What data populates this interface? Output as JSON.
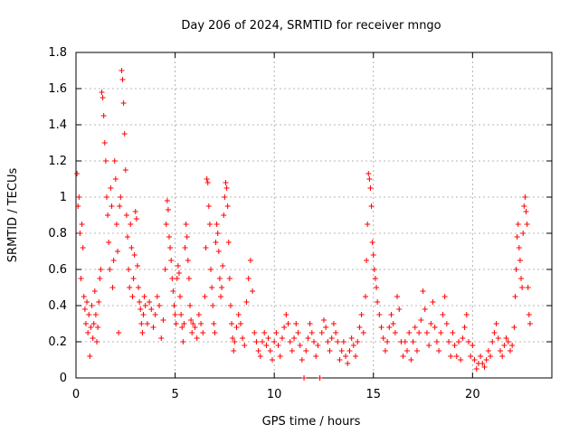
{
  "chart_data": {
    "type": "scatter",
    "title": "Day 206 of 2024, SRMTID for receiver mngo",
    "xlabel": "GPS time / hours",
    "ylabel": "SRMTID / TECUs",
    "xlim": [
      0,
      24
    ],
    "ylim": [
      0,
      1.8
    ],
    "xticks": [
      0,
      5,
      10,
      15,
      20
    ],
    "yticks": [
      0,
      0.2,
      0.4,
      0.6,
      0.8,
      1,
      1.2,
      1.4,
      1.6,
      1.8
    ],
    "grid": true,
    "marker": "+",
    "color": "#ff0000",
    "series": [
      {
        "name": "SRMTID",
        "points": [
          [
            0.05,
            1.13
          ],
          [
            0.1,
            0.95
          ],
          [
            0.15,
            1.0
          ],
          [
            0.2,
            0.8
          ],
          [
            0.25,
            0.55
          ],
          [
            0.3,
            0.85
          ],
          [
            0.35,
            0.72
          ],
          [
            0.4,
            0.45
          ],
          [
            0.45,
            0.38
          ],
          [
            0.5,
            0.3
          ],
          [
            0.55,
            0.42
          ],
          [
            0.6,
            0.25
          ],
          [
            0.65,
            0.35
          ],
          [
            0.7,
            0.12
          ],
          [
            0.75,
            0.28
          ],
          [
            0.8,
            0.4
          ],
          [
            0.85,
            0.22
          ],
          [
            0.9,
            0.3
          ],
          [
            0.95,
            0.48
          ],
          [
            1.0,
            0.35
          ],
          [
            1.05,
            0.2
          ],
          [
            1.1,
            0.28
          ],
          [
            1.15,
            0.42
          ],
          [
            1.2,
            0.55
          ],
          [
            1.25,
            0.6
          ],
          [
            1.3,
            1.58
          ],
          [
            1.35,
            1.55
          ],
          [
            1.4,
            1.45
          ],
          [
            1.45,
            1.3
          ],
          [
            1.5,
            1.2
          ],
          [
            1.55,
            1.0
          ],
          [
            1.6,
            0.9
          ],
          [
            1.65,
            0.75
          ],
          [
            1.7,
            0.6
          ],
          [
            1.75,
            1.05
          ],
          [
            1.8,
            0.95
          ],
          [
            1.85,
            0.5
          ],
          [
            1.9,
            0.65
          ],
          [
            1.95,
            1.2
          ],
          [
            2.0,
            1.1
          ],
          [
            2.05,
            0.85
          ],
          [
            2.1,
            0.7
          ],
          [
            2.15,
            0.25
          ],
          [
            2.2,
            0.95
          ],
          [
            2.25,
            1.0
          ],
          [
            2.3,
            1.7
          ],
          [
            2.35,
            1.65
          ],
          [
            2.4,
            1.52
          ],
          [
            2.45,
            1.35
          ],
          [
            2.5,
            1.15
          ],
          [
            2.55,
            0.9
          ],
          [
            2.6,
            0.78
          ],
          [
            2.65,
            0.6
          ],
          [
            2.7,
            0.5
          ],
          [
            2.75,
            0.85
          ],
          [
            2.8,
            0.72
          ],
          [
            2.85,
            0.45
          ],
          [
            2.9,
            0.55
          ],
          [
            2.95,
            0.68
          ],
          [
            3.0,
            0.92
          ],
          [
            3.05,
            0.88
          ],
          [
            3.1,
            0.62
          ],
          [
            3.15,
            0.5
          ],
          [
            3.2,
            0.42
          ],
          [
            3.25,
            0.38
          ],
          [
            3.3,
            0.3
          ],
          [
            3.35,
            0.25
          ],
          [
            3.4,
            0.35
          ],
          [
            3.45,
            0.45
          ],
          [
            3.5,
            0.4
          ],
          [
            3.6,
            0.3
          ],
          [
            3.7,
            0.42
          ],
          [
            3.8,
            0.38
          ],
          [
            3.9,
            0.28
          ],
          [
            4.0,
            0.35
          ],
          [
            4.1,
            0.45
          ],
          [
            4.2,
            0.4
          ],
          [
            4.3,
            0.22
          ],
          [
            4.4,
            0.32
          ],
          [
            4.5,
            0.6
          ],
          [
            4.55,
            0.85
          ],
          [
            4.6,
            0.98
          ],
          [
            4.65,
            0.93
          ],
          [
            4.7,
            0.78
          ],
          [
            4.75,
            0.72
          ],
          [
            4.8,
            0.65
          ],
          [
            4.85,
            0.55
          ],
          [
            4.9,
            0.48
          ],
          [
            4.95,
            0.4
          ],
          [
            5.0,
            0.35
          ],
          [
            5.05,
            0.3
          ],
          [
            5.1,
            0.55
          ],
          [
            5.15,
            0.62
          ],
          [
            5.2,
            0.58
          ],
          [
            5.25,
            0.45
          ],
          [
            5.3,
            0.35
          ],
          [
            5.35,
            0.28
          ],
          [
            5.4,
            0.2
          ],
          [
            5.45,
            0.3
          ],
          [
            5.5,
            0.72
          ],
          [
            5.55,
            0.85
          ],
          [
            5.6,
            0.78
          ],
          [
            5.65,
            0.65
          ],
          [
            5.7,
            0.55
          ],
          [
            5.75,
            0.4
          ],
          [
            5.8,
            0.32
          ],
          [
            5.85,
            0.25
          ],
          [
            5.9,
            0.3
          ],
          [
            6.0,
            0.28
          ],
          [
            6.1,
            0.22
          ],
          [
            6.2,
            0.35
          ],
          [
            6.3,
            0.3
          ],
          [
            6.4,
            0.25
          ],
          [
            6.5,
            0.45
          ],
          [
            6.55,
            0.72
          ],
          [
            6.6,
            1.1
          ],
          [
            6.65,
            1.08
          ],
          [
            6.7,
            0.95
          ],
          [
            6.75,
            0.85
          ],
          [
            6.8,
            0.6
          ],
          [
            6.85,
            0.5
          ],
          [
            6.9,
            0.4
          ],
          [
            6.95,
            0.3
          ],
          [
            7.0,
            0.25
          ],
          [
            7.05,
            0.75
          ],
          [
            7.1,
            0.85
          ],
          [
            7.15,
            0.8
          ],
          [
            7.2,
            0.7
          ],
          [
            7.25,
            0.55
          ],
          [
            7.3,
            0.45
          ],
          [
            7.35,
            0.5
          ],
          [
            7.4,
            0.62
          ],
          [
            7.45,
            0.9
          ],
          [
            7.5,
            1.0
          ],
          [
            7.55,
            1.08
          ],
          [
            7.6,
            1.05
          ],
          [
            7.65,
            0.95
          ],
          [
            7.7,
            0.75
          ],
          [
            7.75,
            0.55
          ],
          [
            7.8,
            0.4
          ],
          [
            7.85,
            0.3
          ],
          [
            7.9,
            0.22
          ],
          [
            7.95,
            0.15
          ],
          [
            8.0,
            0.2
          ],
          [
            8.1,
            0.28
          ],
          [
            8.2,
            0.35
          ],
          [
            8.3,
            0.3
          ],
          [
            8.4,
            0.22
          ],
          [
            8.5,
            0.18
          ],
          [
            8.6,
            0.42
          ],
          [
            8.7,
            0.55
          ],
          [
            8.8,
            0.65
          ],
          [
            8.9,
            0.48
          ],
          [
            9.0,
            0.25
          ],
          [
            9.1,
            0.2
          ],
          [
            9.2,
            0.15
          ],
          [
            9.3,
            0.12
          ],
          [
            9.4,
            0.2
          ],
          [
            9.5,
            0.25
          ],
          [
            9.6,
            0.18
          ],
          [
            9.7,
            0.22
          ],
          [
            9.8,
            0.15
          ],
          [
            9.9,
            0.1
          ],
          [
            10.0,
            0.2
          ],
          [
            10.1,
            0.25
          ],
          [
            10.2,
            0.18
          ],
          [
            10.3,
            0.12
          ],
          [
            10.4,
            0.22
          ],
          [
            10.5,
            0.28
          ],
          [
            10.6,
            0.35
          ],
          [
            10.7,
            0.3
          ],
          [
            10.8,
            0.2
          ],
          [
            10.9,
            0.15
          ],
          [
            11.0,
            0.22
          ],
          [
            11.1,
            0.3
          ],
          [
            11.2,
            0.25
          ],
          [
            11.3,
            0.18
          ],
          [
            11.4,
            0.1
          ],
          [
            11.5,
            0.0
          ],
          [
            11.6,
            0.15
          ],
          [
            11.7,
            0.22
          ],
          [
            11.8,
            0.3
          ],
          [
            11.9,
            0.25
          ],
          [
            12.0,
            0.2
          ],
          [
            12.1,
            0.12
          ],
          [
            12.2,
            0.18
          ],
          [
            12.3,
            0.0
          ],
          [
            12.4,
            0.25
          ],
          [
            12.5,
            0.32
          ],
          [
            12.6,
            0.28
          ],
          [
            12.7,
            0.2
          ],
          [
            12.8,
            0.15
          ],
          [
            12.9,
            0.22
          ],
          [
            13.0,
            0.3
          ],
          [
            13.1,
            0.25
          ],
          [
            13.2,
            0.2
          ],
          [
            13.3,
            0.1
          ],
          [
            13.4,
            0.15
          ],
          [
            13.5,
            0.2
          ],
          [
            13.6,
            0.12
          ],
          [
            13.7,
            0.08
          ],
          [
            13.8,
            0.15
          ],
          [
            13.9,
            0.22
          ],
          [
            14.0,
            0.18
          ],
          [
            14.1,
            0.12
          ],
          [
            14.2,
            0.2
          ],
          [
            14.3,
            0.28
          ],
          [
            14.4,
            0.35
          ],
          [
            14.5,
            0.25
          ],
          [
            14.6,
            0.45
          ],
          [
            14.65,
            0.65
          ],
          [
            14.7,
            0.85
          ],
          [
            14.75,
            1.13
          ],
          [
            14.8,
            1.1
          ],
          [
            14.85,
            1.05
          ],
          [
            14.9,
            0.95
          ],
          [
            14.95,
            0.75
          ],
          [
            15.0,
            0.68
          ],
          [
            15.05,
            0.6
          ],
          [
            15.1,
            0.55
          ],
          [
            15.15,
            0.5
          ],
          [
            15.2,
            0.42
          ],
          [
            15.3,
            0.35
          ],
          [
            15.4,
            0.28
          ],
          [
            15.5,
            0.22
          ],
          [
            15.6,
            0.15
          ],
          [
            15.7,
            0.2
          ],
          [
            15.8,
            0.28
          ],
          [
            15.9,
            0.35
          ],
          [
            16.0,
            0.3
          ],
          [
            16.1,
            0.25
          ],
          [
            16.2,
            0.45
          ],
          [
            16.3,
            0.38
          ],
          [
            16.4,
            0.2
          ],
          [
            16.5,
            0.12
          ],
          [
            16.6,
            0.2
          ],
          [
            16.7,
            0.15
          ],
          [
            16.8,
            0.25
          ],
          [
            16.9,
            0.1
          ],
          [
            17.0,
            0.2
          ],
          [
            17.1,
            0.28
          ],
          [
            17.2,
            0.15
          ],
          [
            17.3,
            0.25
          ],
          [
            17.4,
            0.32
          ],
          [
            17.5,
            0.48
          ],
          [
            17.6,
            0.38
          ],
          [
            17.7,
            0.25
          ],
          [
            17.8,
            0.18
          ],
          [
            17.9,
            0.3
          ],
          [
            18.0,
            0.42
          ],
          [
            18.1,
            0.28
          ],
          [
            18.2,
            0.2
          ],
          [
            18.3,
            0.15
          ],
          [
            18.4,
            0.25
          ],
          [
            18.5,
            0.35
          ],
          [
            18.6,
            0.45
          ],
          [
            18.7,
            0.3
          ],
          [
            18.8,
            0.2
          ],
          [
            18.9,
            0.12
          ],
          [
            19.0,
            0.25
          ],
          [
            19.1,
            0.18
          ],
          [
            19.2,
            0.12
          ],
          [
            19.3,
            0.2
          ],
          [
            19.4,
            0.1
          ],
          [
            19.5,
            0.22
          ],
          [
            19.6,
            0.28
          ],
          [
            19.7,
            0.35
          ],
          [
            19.8,
            0.2
          ],
          [
            19.9,
            0.12
          ],
          [
            20.0,
            0.18
          ],
          [
            20.1,
            0.1
          ],
          [
            20.2,
            0.05
          ],
          [
            20.3,
            0.08
          ],
          [
            20.4,
            0.12
          ],
          [
            20.5,
            0.08
          ],
          [
            20.6,
            0.06
          ],
          [
            20.7,
            0.1
          ],
          [
            20.8,
            0.15
          ],
          [
            20.9,
            0.12
          ],
          [
            21.0,
            0.2
          ],
          [
            21.1,
            0.25
          ],
          [
            21.2,
            0.3
          ],
          [
            21.3,
            0.22
          ],
          [
            21.4,
            0.15
          ],
          [
            21.5,
            0.12
          ],
          [
            21.6,
            0.18
          ],
          [
            21.7,
            0.22
          ],
          [
            21.8,
            0.2
          ],
          [
            21.9,
            0.15
          ],
          [
            22.0,
            0.18
          ],
          [
            22.1,
            0.28
          ],
          [
            22.15,
            0.45
          ],
          [
            22.2,
            0.6
          ],
          [
            22.25,
            0.78
          ],
          [
            22.3,
            0.85
          ],
          [
            22.35,
            0.72
          ],
          [
            22.4,
            0.65
          ],
          [
            22.45,
            0.55
          ],
          [
            22.5,
            0.5
          ],
          [
            22.55,
            0.8
          ],
          [
            22.6,
            0.95
          ],
          [
            22.65,
            1.0
          ],
          [
            22.7,
            0.92
          ],
          [
            22.75,
            0.85
          ],
          [
            22.8,
            0.5
          ],
          [
            22.85,
            0.35
          ],
          [
            22.9,
            0.3
          ]
        ]
      }
    ]
  }
}
